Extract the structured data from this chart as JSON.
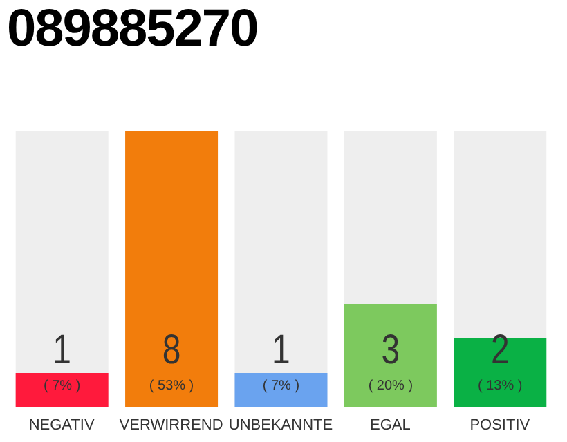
{
  "chart_data": {
    "type": "bar",
    "title": "089885270",
    "categories": [
      "NEGATIV",
      "VERWIRREND",
      "UNBEKANNTE",
      "EGAL",
      "POSITIV"
    ],
    "values": [
      1,
      8,
      1,
      3,
      2
    ],
    "colors": [
      "#ff1a3c",
      "#f27d0c",
      "#6aa3ef",
      "#7dc95e",
      "#0ab145"
    ],
    "data_labels": true,
    "annotations": [
      "( 7% )",
      "( 53% )",
      "( 7% )",
      "( 20% )",
      "( 13% )"
    ],
    "grid": false,
    "legend": false
  }
}
